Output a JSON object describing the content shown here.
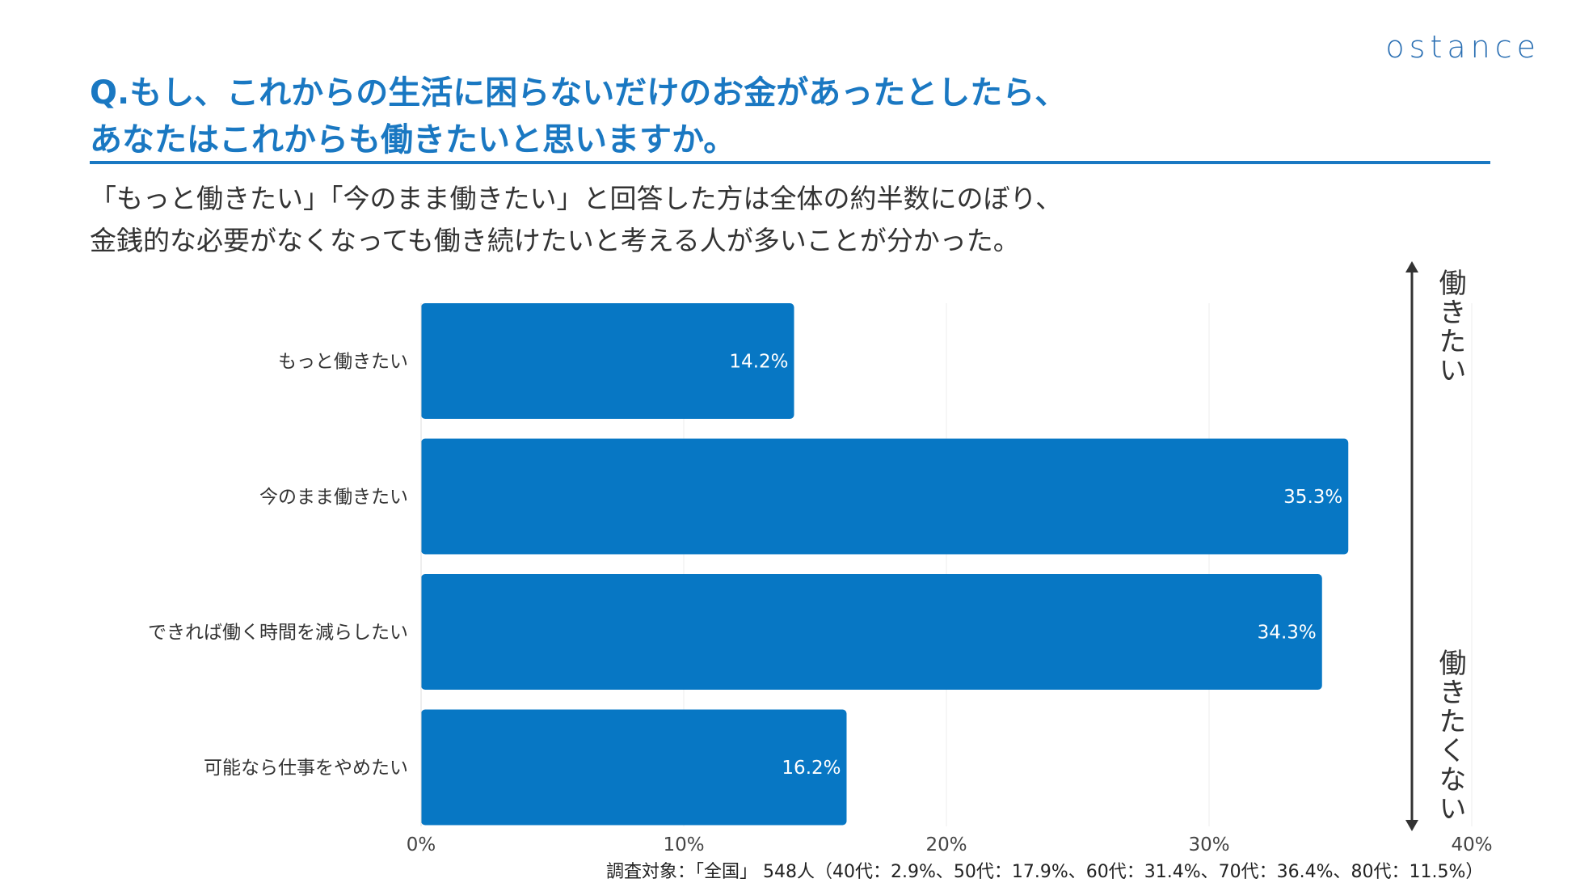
{
  "brand": "ostance",
  "title_lines": [
    "Q.もし、これからの生活に困らないだけのお金があったとしたら、",
    "あなたはこれからも働きたいと思いますか。"
  ],
  "subtitle_lines": [
    "「もっと働きたい」「今のまま働きたい」と回答した方は全体の約半数にのぼり、",
    "金銭的な必要がなくなっても働き続けたいと考える人が多いことが分かった。"
  ],
  "axis_arrow": {
    "top_label": "働きたい",
    "bottom_label": "働きたくない"
  },
  "footnote": "調査対象：「全国」 548人（40代：2.9%、50代：17.9%、60代：31.4%、70代：36.4%、80代：11.5%）",
  "colors": {
    "bar": "#0777c4",
    "title": "#1a78c2",
    "grid": "#eeeeee"
  },
  "chart_data": {
    "type": "bar",
    "orientation": "horizontal",
    "categories": [
      "もっと働きたい",
      "今のまま働きたい",
      "できれば働く時間を減らしたい",
      "可能なら仕事をやめたい"
    ],
    "values": [
      14.2,
      35.3,
      34.3,
      16.2
    ],
    "data_labels": [
      "14.2%",
      "35.3%",
      "34.3%",
      "16.2%"
    ],
    "xlim": [
      0,
      40
    ],
    "xticks": [
      0,
      10,
      20,
      30,
      40
    ],
    "xtick_labels": [
      "0%",
      "10%",
      "20%",
      "30%",
      "40%"
    ],
    "grid": true
  }
}
